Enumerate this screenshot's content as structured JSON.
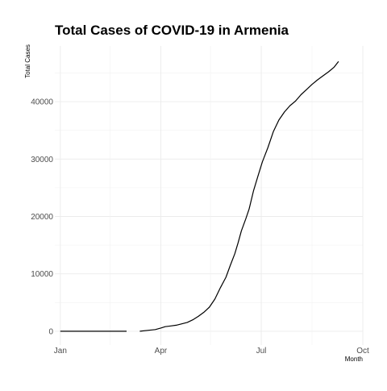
{
  "chart_data": {
    "type": "line",
    "title": "Total Cases of COVID-19 in Armenia",
    "xlabel": "Month",
    "ylabel": "Total Cases",
    "x_ticks": [
      "Jan",
      "Apr",
      "Jul",
      "Oct"
    ],
    "y_ticks": [
      0,
      10000,
      20000,
      30000,
      40000
    ],
    "xlim": [
      "2019-12-27",
      "2020-10-01"
    ],
    "ylim": [
      -2400,
      49700
    ],
    "grid": true,
    "legend": "none",
    "series": [
      {
        "segments": [
          [
            [
              "2020-01-01",
              0
            ],
            [
              "2020-01-15",
              0
            ],
            [
              "2020-02-01",
              0
            ],
            [
              "2020-02-15",
              0
            ],
            [
              "2020-03-01",
              0
            ]
          ],
          [
            [
              "2020-03-13",
              0
            ],
            [
              "2020-03-20",
              160
            ],
            [
              "2020-03-27",
              300
            ],
            [
              "2020-04-01",
              560
            ],
            [
              "2020-04-05",
              800
            ],
            [
              "2020-04-10",
              930
            ],
            [
              "2020-04-15",
              1050
            ],
            [
              "2020-04-20",
              1300
            ],
            [
              "2020-04-25",
              1550
            ],
            [
              "2020-04-30",
              2000
            ],
            [
              "2020-05-05",
              2600
            ],
            [
              "2020-05-10",
              3300
            ],
            [
              "2020-05-15",
              4200
            ],
            [
              "2020-05-20",
              5600
            ],
            [
              "2020-05-25",
              7600
            ],
            [
              "2020-05-30",
              9400
            ],
            [
              "2020-06-03",
              11500
            ],
            [
              "2020-06-07",
              13500
            ],
            [
              "2020-06-10",
              15400
            ],
            [
              "2020-06-13",
              17500
            ],
            [
              "2020-06-17",
              19600
            ],
            [
              "2020-06-20",
              21300
            ],
            [
              "2020-06-24",
              24500
            ],
            [
              "2020-06-28",
              27000
            ],
            [
              "2020-07-02",
              29500
            ],
            [
              "2020-07-07",
              32000
            ],
            [
              "2020-07-12",
              34800
            ],
            [
              "2020-07-17",
              36800
            ],
            [
              "2020-07-22",
              38200
            ],
            [
              "2020-07-27",
              39300
            ],
            [
              "2020-08-01",
              40100
            ],
            [
              "2020-08-06",
              41200
            ],
            [
              "2020-08-11",
              42100
            ],
            [
              "2020-08-16",
              43000
            ],
            [
              "2020-08-21",
              43800
            ],
            [
              "2020-08-26",
              44500
            ],
            [
              "2020-08-31",
              45200
            ],
            [
              "2020-09-05",
              46000
            ],
            [
              "2020-09-09",
              47000
            ]
          ]
        ]
      }
    ]
  }
}
